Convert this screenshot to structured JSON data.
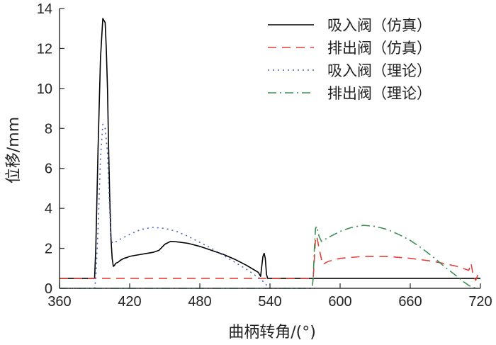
{
  "chart_data": {
    "type": "line",
    "xlabel": "曲柄转角/(°)",
    "ylabel": "位移/mm",
    "xlim": [
      360,
      720
    ],
    "ylim": [
      0,
      14
    ],
    "xticks": [
      360,
      420,
      480,
      540,
      600,
      660,
      720
    ],
    "yticks": [
      0,
      2,
      4,
      6,
      8,
      10,
      12,
      14
    ],
    "grid": false,
    "legend_position": "top-right",
    "series": [
      {
        "name": "吸入阀（仿真）",
        "color": "#000000",
        "dash": "solid",
        "x": [
          360,
          390,
          391,
          393,
          395,
          397,
          399,
          400,
          401,
          402,
          403,
          404,
          405,
          406,
          407,
          408,
          410,
          412,
          415,
          418,
          420,
          425,
          430,
          435,
          440,
          445,
          450,
          455,
          460,
          470,
          480,
          490,
          500,
          510,
          520,
          530,
          532,
          533,
          534,
          535,
          536,
          537,
          538,
          540,
          541,
          560,
          600,
          640,
          680,
          720
        ],
        "y": [
          0.5,
          0.5,
          2.0,
          7.0,
          11.5,
          13.5,
          13.3,
          12.0,
          10.0,
          7.0,
          4.5,
          2.5,
          1.5,
          1.1,
          1.15,
          1.25,
          1.3,
          1.4,
          1.5,
          1.55,
          1.6,
          1.65,
          1.7,
          1.75,
          1.8,
          1.9,
          2.2,
          2.35,
          2.33,
          2.25,
          2.1,
          1.9,
          1.7,
          1.45,
          1.15,
          0.8,
          0.6,
          1.1,
          1.6,
          1.75,
          1.5,
          0.7,
          0.5,
          0.5,
          0.5,
          0.5,
          0.5,
          0.5,
          0.5,
          0.5
        ]
      },
      {
        "name": "排出阀（仿真）",
        "color": "#e0403a",
        "dash": "12,8",
        "x": [
          360,
          400,
          450,
          500,
          540,
          575,
          577,
          578,
          579,
          580,
          582,
          585,
          590,
          600,
          620,
          640,
          660,
          680,
          700,
          710,
          712,
          714,
          716,
          718
        ],
        "y": [
          0.5,
          0.5,
          0.5,
          0.5,
          0.5,
          0.5,
          0.5,
          1.5,
          2.5,
          2.6,
          2.0,
          1.2,
          1.35,
          1.5,
          1.6,
          1.6,
          1.5,
          1.35,
          1.1,
          0.9,
          1.25,
          0.6,
          0.4,
          0.7
        ]
      },
      {
        "name": "吸入阀（理论）",
        "color": "#4a5fbf",
        "dash": "2,5",
        "x": [
          360,
          390,
          391,
          393,
          395,
          397,
          399,
          401,
          403,
          404,
          405,
          406,
          410,
          420,
          430,
          440,
          450,
          460,
          470,
          480,
          490,
          500,
          510,
          520,
          530,
          535,
          538,
          540,
          560,
          580
        ],
        "y": [
          0.0,
          0.0,
          0.5,
          3.0,
          6.5,
          8.2,
          8.0,
          6.8,
          3.8,
          2.6,
          2.3,
          2.25,
          2.4,
          2.7,
          2.95,
          3.05,
          3.0,
          2.85,
          2.6,
          2.3,
          2.0,
          1.65,
          1.3,
          0.95,
          0.55,
          0.3,
          0.1,
          0.0,
          0.0,
          0.0
        ]
      },
      {
        "name": "排出阀（理论）",
        "color": "#3b8f55",
        "dash": "12,5,2,5",
        "x": [
          360,
          400,
          450,
          500,
          540,
          576,
          577,
          578,
          579,
          580,
          582,
          584,
          590,
          600,
          610,
          620,
          630,
          640,
          650,
          660,
          670,
          680,
          690,
          700,
          705,
          710,
          713,
          718
        ],
        "y": [
          0.0,
          0.0,
          0.0,
          0.0,
          0.0,
          0.0,
          0.5,
          2.0,
          3.0,
          3.1,
          2.6,
          2.35,
          2.55,
          2.85,
          3.05,
          3.15,
          3.1,
          2.95,
          2.7,
          2.4,
          2.0,
          1.55,
          1.05,
          0.6,
          0.35,
          0.15,
          0.05,
          0.0
        ]
      }
    ]
  }
}
